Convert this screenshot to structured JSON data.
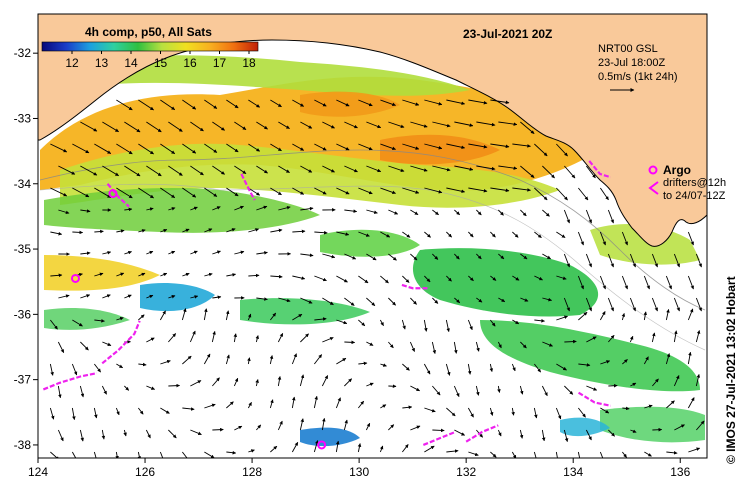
{
  "map": {
    "title": "23-Jul-2021 20Z",
    "colorbar": {
      "label": "4h comp, p50, All Sats",
      "ticks": [
        "12",
        "13",
        "14",
        "15",
        "16",
        "17",
        "18"
      ],
      "stops": [
        "#08087a",
        "#1a3cc8",
        "#1ca0e0",
        "#30d0a0",
        "#30c040",
        "#b8e040",
        "#f0e020",
        "#f8b020",
        "#f07010",
        "#c02008"
      ]
    },
    "currents_info": {
      "line1": "NRT00 GSL",
      "line2": "23-Jul 18:00Z",
      "line3": "0.5m/s (1kt 24h)"
    },
    "argo_legend": {
      "label": "Argo",
      "drifters_line1": "drifters@12h",
      "drifters_line2": "to 24/07-12Z"
    },
    "credit": "© IMOS 27-Jul-2021 13:02 Hobart",
    "x_axis": {
      "ticks": [
        "124",
        "126",
        "128",
        "130",
        "132",
        "134",
        "136"
      ],
      "values": [
        124,
        126,
        128,
        130,
        132,
        134,
        136
      ],
      "range": [
        124,
        136.5
      ]
    },
    "y_axis": {
      "ticks": [
        "-32",
        "-33",
        "-34",
        "-35",
        "-36",
        "-37",
        "-38"
      ],
      "values": [
        -32,
        -33,
        -34,
        -35,
        -36,
        -37,
        -38
      ],
      "range": [
        -38.2,
        -31.4
      ]
    },
    "colors": {
      "land": "#f9c99a",
      "coast_line": "#000000",
      "argo": "#ff00ff",
      "drifter": "#ee22ee"
    },
    "argo_floats": [
      {
        "lon": 125.4,
        "lat": -34.15
      },
      {
        "lon": 124.7,
        "lat": -35.45
      },
      {
        "lon": 129.3,
        "lat": -38.0
      }
    ],
    "drifter_tracks": [
      [
        [
          125.3,
          -34.0
        ],
        [
          125.5,
          -34.2
        ],
        [
          125.7,
          -34.35
        ]
      ],
      [
        [
          127.8,
          -33.85
        ],
        [
          127.95,
          -34.1
        ],
        [
          128.05,
          -34.25
        ]
      ],
      [
        [
          124.1,
          -37.15
        ],
        [
          124.4,
          -37.05
        ],
        [
          124.8,
          -36.95
        ],
        [
          125.1,
          -36.9
        ]
      ],
      [
        [
          125.2,
          -36.75
        ],
        [
          125.5,
          -36.55
        ],
        [
          125.8,
          -36.3
        ],
        [
          125.9,
          -36.1
        ]
      ],
      [
        [
          130.8,
          -35.55
        ],
        [
          131.0,
          -35.6
        ],
        [
          131.3,
          -35.6
        ]
      ],
      [
        [
          131.2,
          -38.0
        ],
        [
          131.5,
          -37.9
        ],
        [
          131.8,
          -37.8
        ]
      ],
      [
        [
          132.0,
          -37.95
        ],
        [
          132.3,
          -37.8
        ],
        [
          132.6,
          -37.7
        ]
      ],
      [
        [
          134.1,
          -37.2
        ],
        [
          134.4,
          -37.35
        ],
        [
          134.7,
          -37.4
        ]
      ],
      [
        [
          134.3,
          -33.65
        ],
        [
          134.5,
          -33.85
        ],
        [
          134.7,
          -33.9
        ]
      ]
    ]
  }
}
